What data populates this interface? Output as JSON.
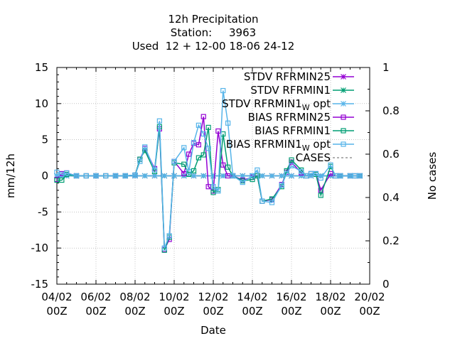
{
  "chart_data": {
    "type": "line",
    "title_lines": [
      "12h Precipitation",
      "Station:     3963",
      "Used  12 + 12-00 18-06 24-12"
    ],
    "xlabel": "Date",
    "ylabel": "mm/12h",
    "y2label": "No cases",
    "xlim": [
      0,
      32
    ],
    "ylim": [
      -15,
      15
    ],
    "y2lim": [
      0,
      1
    ],
    "x_ticks": [
      0,
      4,
      8,
      12,
      16,
      20,
      24,
      28,
      32
    ],
    "x_tick_labels": [
      [
        "04/02",
        "00Z"
      ],
      [
        "06/02",
        "00Z"
      ],
      [
        "08/02",
        "00Z"
      ],
      [
        "10/02",
        "00Z"
      ],
      [
        "12/02",
        "00Z"
      ],
      [
        "14/02",
        "00Z"
      ],
      [
        "16/02",
        "00Z"
      ],
      [
        "18/02",
        "00Z"
      ],
      [
        "20/02",
        "00Z"
      ]
    ],
    "y_ticks": [
      -15,
      -10,
      -5,
      0,
      5,
      10,
      15
    ],
    "y2_ticks": [
      0,
      0.2,
      0.4,
      0.6,
      0.8,
      1
    ],
    "grid": true,
    "legend_position": "top-right",
    "series": [
      {
        "name": "STDV RFRMIN25",
        "color": "#9400d3",
        "marker": "x",
        "x": [
          0,
          0.5,
          1,
          2,
          4,
          6,
          7,
          8,
          9,
          10,
          11,
          12,
          13,
          14,
          15,
          16,
          17,
          18,
          19,
          20,
          21,
          22,
          23,
          24,
          25,
          26,
          27,
          28,
          29,
          30,
          31
        ],
        "y": [
          0,
          0,
          0,
          0,
          0,
          0,
          0,
          0,
          0,
          0,
          0,
          0,
          0,
          0,
          0,
          0,
          0,
          0,
          0,
          0,
          0,
          0,
          0,
          0,
          0,
          0,
          0,
          0,
          0,
          0,
          0
        ]
      },
      {
        "name": "STDV RFRMIN1",
        "color": "#009e73",
        "marker": "x",
        "x": [
          0,
          0.5,
          1,
          2,
          4,
          6,
          7,
          8,
          9,
          10,
          11,
          12,
          13,
          14,
          15,
          16,
          17,
          18,
          19,
          20,
          21,
          22,
          23,
          24,
          25,
          26,
          27,
          28,
          29,
          30,
          31
        ],
        "y": [
          0,
          0,
          0,
          0,
          0,
          0,
          0,
          0,
          0,
          0,
          0,
          0,
          0,
          0,
          0,
          0,
          0,
          0,
          0,
          0,
          0,
          0,
          0,
          0,
          0,
          0,
          0,
          0,
          0,
          0,
          0
        ]
      },
      {
        "name": "STDV RFRMIN1",
        "name_subscript": "W",
        "name_suffix": " opt",
        "color": "#56b4e9",
        "marker": "x",
        "x": [
          0,
          0.5,
          1,
          2,
          4,
          6,
          7,
          8,
          9,
          10,
          11,
          12,
          13,
          14,
          15,
          16,
          17,
          18,
          19,
          20,
          21,
          22,
          23,
          24,
          25,
          26,
          27,
          28,
          29,
          30,
          31
        ],
        "y": [
          0,
          0,
          0,
          0,
          0,
          0,
          0,
          0,
          0,
          0,
          0,
          0,
          0,
          0,
          0,
          0,
          0,
          0,
          0,
          0,
          0,
          0,
          0,
          0,
          0,
          0,
          0,
          0,
          0,
          0,
          0
        ]
      },
      {
        "name": "BIAS RFRMIN25",
        "color": "#9400d3",
        "marker": "square",
        "x": [
          0,
          0.5,
          1,
          2,
          3,
          4,
          5,
          6,
          7,
          8,
          8.5,
          9,
          10,
          10.5,
          11,
          11.5,
          12,
          13,
          13.5,
          14,
          14.5,
          15,
          15.5,
          16,
          16.5,
          17,
          17.5,
          18,
          19,
          20,
          20.5,
          21,
          22,
          23,
          23.5,
          24,
          25,
          25.5,
          26,
          26.5,
          27,
          28,
          28.5,
          29,
          30,
          30.5,
          31
        ],
        "y": [
          -0.5,
          0.3,
          0.4,
          0,
          0,
          0,
          0,
          0,
          0,
          0.1,
          2.3,
          3.8,
          1.0,
          6.5,
          -10.2,
          -8.8,
          2.0,
          0.3,
          3.0,
          4.5,
          4.3,
          8.2,
          -1.5,
          -2.1,
          6.2,
          1.5,
          0,
          0,
          -0.6,
          -0.2,
          0,
          -3.5,
          -3.3,
          -1.2,
          0.5,
          1.9,
          0.4,
          0,
          0.3,
          0.3,
          -2.0,
          0.3,
          0,
          0,
          0,
          0,
          0
        ]
      },
      {
        "name": "BIAS RFRMIN1",
        "color": "#009e73",
        "marker": "square",
        "x": [
          0,
          0.5,
          1,
          2,
          3,
          4,
          5,
          6,
          7,
          8,
          8.5,
          9,
          10,
          10.5,
          11,
          11.5,
          12,
          13,
          13.5,
          14,
          14.5,
          15,
          15.5,
          16,
          16.5,
          17,
          17.5,
          18,
          19,
          20,
          20.5,
          21,
          22,
          23,
          23.5,
          24,
          25,
          25.5,
          26,
          26.5,
          27,
          28,
          28.5,
          29,
          30,
          30.5,
          31
        ],
        "y": [
          -0.6,
          -0.6,
          0.2,
          0,
          0,
          0,
          0,
          0,
          0,
          0.1,
          2.3,
          3.5,
          0.6,
          6.8,
          -10.3,
          -8.5,
          1.8,
          1.6,
          0.2,
          0.7,
          2.5,
          2.9,
          6.7,
          -2.3,
          -1.9,
          5.8,
          1.2,
          0,
          -0.7,
          -0.5,
          0,
          -3.5,
          -3.2,
          -1.5,
          0.7,
          2.2,
          0.8,
          0,
          0.3,
          0.2,
          -2.7,
          1.3,
          0,
          0,
          0,
          0,
          0
        ]
      },
      {
        "name": "BIAS RFRMIN1",
        "name_subscript": "W",
        "name_suffix": " opt",
        "color": "#56b4e9",
        "marker": "square",
        "x": [
          0,
          0.5,
          1,
          2,
          3,
          4,
          5,
          6,
          7,
          8,
          8.5,
          9,
          10,
          10.5,
          11,
          11.5,
          12,
          13,
          13.5,
          14,
          14.5,
          15,
          15.5,
          16,
          16.5,
          17,
          17.5,
          18,
          19,
          20,
          20.5,
          21,
          22,
          23,
          23.5,
          24,
          25,
          25.5,
          26,
          26.5,
          27,
          28,
          28.5,
          29,
          30,
          30.5,
          31
        ],
        "y": [
          0.5,
          0.2,
          0.4,
          0,
          0,
          0,
          0,
          0,
          0,
          0.1,
          2.0,
          4.0,
          0.8,
          7.6,
          -10.0,
          -8.3,
          2.0,
          3.9,
          0.6,
          4.6,
          7.0,
          5.8,
          3.8,
          -1.5,
          -2.1,
          11.8,
          7.3,
          0,
          -0.9,
          0,
          0.8,
          -3.5,
          -3.7,
          -1.3,
          0.3,
          1.4,
          0.6,
          0,
          0.3,
          0.3,
          -0.3,
          1.5,
          0,
          0,
          0,
          0,
          0
        ]
      }
    ],
    "cases_series": {
      "name": "CASES",
      "color": "#808080",
      "dashed": true,
      "x": [],
      "y": []
    }
  }
}
